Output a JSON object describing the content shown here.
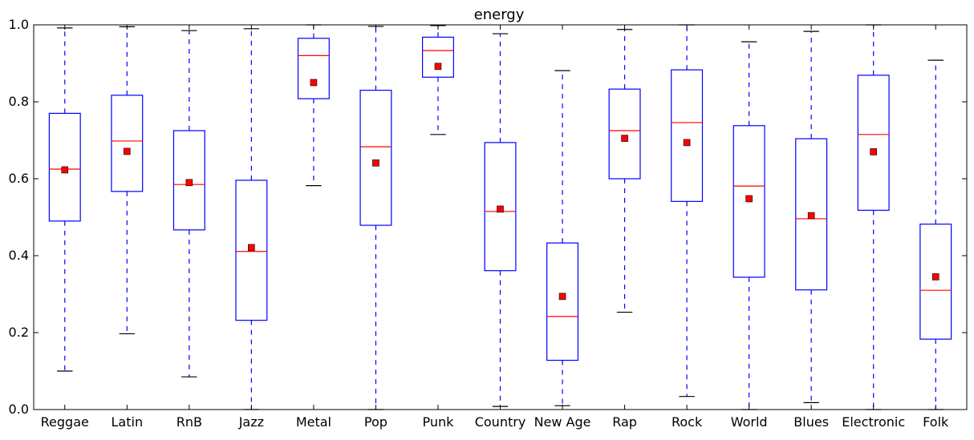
{
  "chart_data": {
    "type": "box",
    "title": "energy",
    "xlabel": "",
    "ylabel": "",
    "ylim": [
      0.0,
      1.0
    ],
    "yticks": [
      "0.0",
      "0.2",
      "0.4",
      "0.6",
      "0.8",
      "1.0"
    ],
    "categories": [
      "Reggae",
      "Latin",
      "RnB",
      "Jazz",
      "Metal",
      "Pop",
      "Punk",
      "Country",
      "New Age",
      "Rap",
      "Rock",
      "World",
      "Blues",
      "Electronic",
      "Folk"
    ],
    "boxes": [
      {
        "whisker_low": 0.1,
        "q1": 0.49,
        "median": 0.625,
        "q3": 0.77,
        "whisker_high": 0.992,
        "mean": 0.623
      },
      {
        "whisker_low": 0.197,
        "q1": 0.567,
        "median": 0.698,
        "q3": 0.817,
        "whisker_high": 0.995,
        "mean": 0.671
      },
      {
        "whisker_low": 0.085,
        "q1": 0.467,
        "median": 0.585,
        "q3": 0.725,
        "whisker_high": 0.985,
        "mean": 0.59
      },
      {
        "whisker_low": 0.0,
        "q1": 0.232,
        "median": 0.411,
        "q3": 0.596,
        "whisker_high": 0.99,
        "mean": 0.421
      },
      {
        "whisker_low": 0.582,
        "q1": 0.808,
        "median": 0.92,
        "q3": 0.965,
        "whisker_high": 1.0,
        "mean": 0.85
      },
      {
        "whisker_low": 0.0,
        "q1": 0.479,
        "median": 0.683,
        "q3": 0.83,
        "whisker_high": 0.996,
        "mean": 0.641
      },
      {
        "whisker_low": 0.715,
        "q1": 0.864,
        "median": 0.933,
        "q3": 0.968,
        "whisker_high": 0.998,
        "mean": 0.892
      },
      {
        "whisker_low": 0.008,
        "q1": 0.361,
        "median": 0.515,
        "q3": 0.694,
        "whisker_high": 0.977,
        "mean": 0.521
      },
      {
        "whisker_low": 0.01,
        "q1": 0.128,
        "median": 0.242,
        "q3": 0.433,
        "whisker_high": 0.881,
        "mean": 0.294
      },
      {
        "whisker_low": 0.253,
        "q1": 0.6,
        "median": 0.725,
        "q3": 0.833,
        "whisker_high": 0.988,
        "mean": 0.705
      },
      {
        "whisker_low": 0.034,
        "q1": 0.541,
        "median": 0.746,
        "q3": 0.883,
        "whisker_high": 1.0,
        "mean": 0.694
      },
      {
        "whisker_low": 0.0,
        "q1": 0.344,
        "median": 0.581,
        "q3": 0.738,
        "whisker_high": 0.956,
        "mean": 0.548
      },
      {
        "whisker_low": 0.018,
        "q1": 0.311,
        "median": 0.496,
        "q3": 0.704,
        "whisker_high": 0.983,
        "mean": 0.504
      },
      {
        "whisker_low": 0.0,
        "q1": 0.518,
        "median": 0.715,
        "q3": 0.869,
        "whisker_high": 1.0,
        "mean": 0.67
      },
      {
        "whisker_low": 0.0,
        "q1": 0.183,
        "median": 0.31,
        "q3": 0.482,
        "whisker_high": 0.908,
        "mean": 0.345
      }
    ],
    "grid": false,
    "legend": "none",
    "colors": {
      "box": "#0000ff",
      "whisker": "#0000ff",
      "cap": "#000000",
      "median": "#ff0000",
      "mean_marker": "#ff0000",
      "mean_edge": "#000000",
      "axes": "#000000",
      "background": "#ffffff"
    }
  }
}
